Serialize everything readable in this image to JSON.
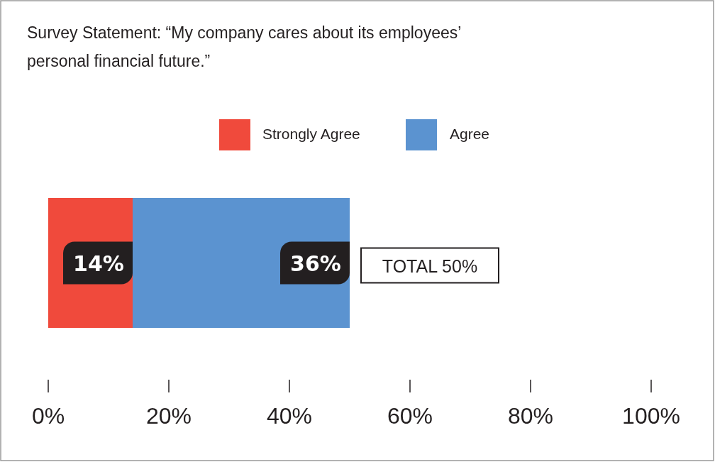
{
  "chart_data": {
    "type": "bar",
    "orientation": "horizontal",
    "stacked": true,
    "title": "Survey Statement: “My company cares about its employees’ personal financial future.”",
    "categories": [
      null
    ],
    "series": [
      {
        "name": "Strongly Agree",
        "color": "#f04a3c",
        "values": [
          14
        ],
        "value_labels": [
          "14%"
        ]
      },
      {
        "name": "Agree",
        "color": "#5b93d0",
        "values": [
          36
        ],
        "value_labels": [
          "36%"
        ]
      }
    ],
    "totals": [
      "TOTAL 50%"
    ],
    "xlim": [
      0,
      100
    ],
    "xticks": [
      {
        "value": 0,
        "label": "0%"
      },
      {
        "value": 20,
        "label": "20%"
      },
      {
        "value": 40,
        "label": "40%"
      },
      {
        "value": 60,
        "label": "60%"
      },
      {
        "value": 80,
        "label": "80%"
      },
      {
        "value": 100,
        "label": "100%"
      }
    ],
    "legend": "top",
    "grid": false
  }
}
